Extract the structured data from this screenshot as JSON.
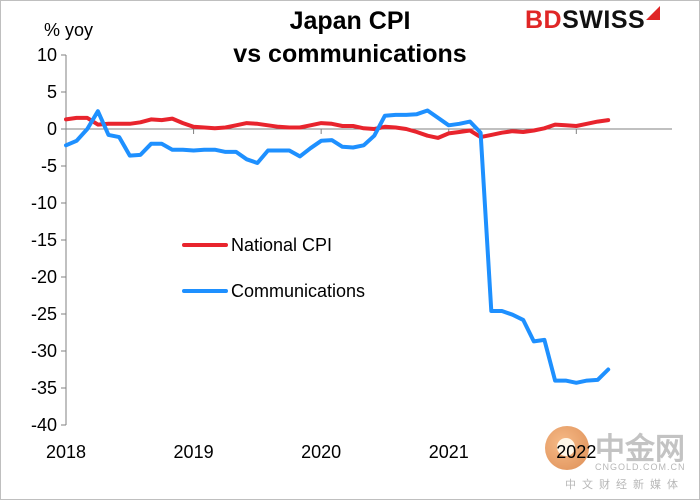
{
  "chart_data": {
    "type": "line",
    "title_line1": "Japan CPI",
    "title_line2": "vs communications",
    "ylabel": "% yoy",
    "ylim": [
      -40,
      10
    ],
    "yticks": [
      10,
      5,
      0,
      -5,
      -10,
      -15,
      -20,
      -25,
      -30,
      -35,
      -40
    ],
    "xlim": [
      2018,
      2022.75
    ],
    "xticks": [
      {
        "label": "2018",
        "value": 2018
      },
      {
        "label": "2019",
        "value": 2019
      },
      {
        "label": "2020",
        "value": 2020
      },
      {
        "label": "2021",
        "value": 2021
      },
      {
        "label": "2022",
        "value": 2022
      }
    ],
    "legend_position": "center-left",
    "series": [
      {
        "name": "National CPI",
        "color": "#e8242d",
        "start": 2018,
        "step": 0.0833333,
        "values": [
          1.3,
          1.5,
          1.5,
          0.6,
          0.7,
          0.7,
          0.7,
          0.9,
          1.3,
          1.2,
          1.4,
          0.8,
          0.3,
          0.2,
          0.1,
          0.2,
          0.5,
          0.8,
          0.7,
          0.5,
          0.3,
          0.2,
          0.2,
          0.5,
          0.8,
          0.7,
          0.4,
          0.4,
          0.1,
          0.0,
          0.3,
          0.2,
          0.0,
          -0.4,
          -0.9,
          -1.2,
          -0.6,
          -0.4,
          -0.2,
          -1.1,
          -0.8,
          -0.5,
          -0.3,
          -0.4,
          -0.2,
          0.1,
          0.6,
          0.5,
          0.4,
          0.7,
          1.0,
          1.2
        ]
      },
      {
        "name": "Communications",
        "color": "#1e90ff",
        "start": 2018,
        "step": 0.0833333,
        "values": [
          -2.2,
          -1.6,
          0.0,
          2.4,
          -0.8,
          -1.1,
          -3.6,
          -3.5,
          -2.0,
          -2.0,
          -2.8,
          -2.8,
          -2.9,
          -2.8,
          -2.8,
          -3.1,
          -3.1,
          -4.1,
          -4.6,
          -2.9,
          -2.9,
          -2.9,
          -3.7,
          -2.6,
          -1.6,
          -1.5,
          -2.4,
          -2.5,
          -2.2,
          -0.9,
          1.8,
          1.9,
          1.9,
          2.0,
          2.5,
          1.5,
          0.5,
          0.7,
          1.0,
          -0.5,
          -24.6,
          -24.6,
          -25.1,
          -25.8,
          -28.7,
          -28.5,
          -34.0,
          -34.0,
          -34.3,
          -34.0,
          -33.9,
          -32.5
        ]
      }
    ]
  },
  "brand": {
    "logo_bd": "BD",
    "logo_swiss": "SWISS"
  },
  "watermark": {
    "text": "中金网",
    "url": "CNGOLD.COM.CN",
    "sub": "中文财经新媒体"
  }
}
